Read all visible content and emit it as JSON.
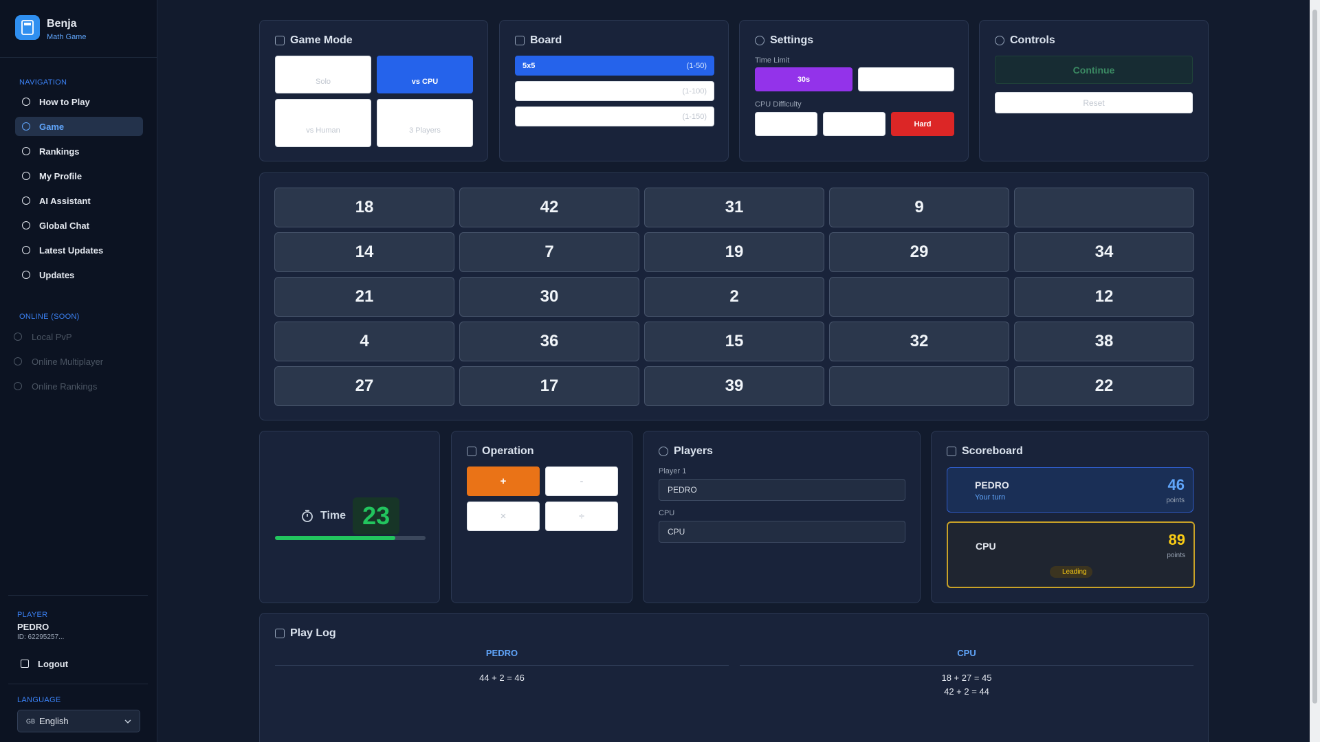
{
  "sidebar": {
    "app_name": "Benja",
    "app_subtitle": "Math Game",
    "nav_heading": "NAVIGATION",
    "nav_items": [
      "How to Play",
      "Game",
      "Rankings",
      "My Profile",
      "AI Assistant",
      "Global Chat",
      "Latest Updates",
      "Updates"
    ],
    "online_heading": "ONLINE (SOON)",
    "online_items": [
      "Local PvP",
      "Online Multiplayer",
      "Online Rankings"
    ],
    "player_heading": "PLAYER",
    "player_name": "PEDRO",
    "player_id": "ID: 62295257...",
    "logout": "Logout",
    "language_heading": "LANGUAGE",
    "language_flag": "GB",
    "language": "English"
  },
  "game_mode": {
    "title": "Game Mode",
    "options": [
      "Solo",
      "vs CPU",
      "vs Human",
      "3 Players"
    ]
  },
  "board": {
    "title": "Board",
    "options": [
      {
        "label": "5x5",
        "range": "(1-50)"
      },
      {
        "range": "(1-100)"
      },
      {
        "range": "(1-150)"
      }
    ]
  },
  "settings": {
    "title": "Settings",
    "time_limit_label": "Time Limit",
    "time_option": "30s",
    "cpu_difficulty_label": "CPU Difficulty",
    "difficulty_option": "Hard"
  },
  "controls": {
    "title": "Controls",
    "continue": "Continue",
    "reset": "Reset"
  },
  "grid": {
    "rows": [
      [
        18,
        42,
        31,
        9,
        null
      ],
      [
        14,
        7,
        19,
        29,
        34
      ],
      [
        21,
        30,
        2,
        null,
        12
      ],
      [
        4,
        36,
        15,
        32,
        38
      ],
      [
        27,
        17,
        39,
        null,
        22
      ]
    ]
  },
  "timer": {
    "label": "Time",
    "value": 23
  },
  "operation": {
    "title": "Operation",
    "options": [
      "+",
      "-",
      "×",
      "÷"
    ]
  },
  "players": {
    "title": "Players",
    "player1_label": "Player 1",
    "player1_value": "PEDRO",
    "cpu_label": "CPU",
    "cpu_value": "CPU"
  },
  "scoreboard": {
    "title": "Scoreboard",
    "entries": [
      {
        "name": "PEDRO",
        "note": "Your turn",
        "score": 46,
        "unit": "points"
      },
      {
        "name": "CPU",
        "score": 89,
        "unit": "points",
        "badge": "Leading"
      }
    ]
  },
  "play_log": {
    "title": "Play Log",
    "columns": [
      {
        "name": "PEDRO",
        "entries": [
          "44 + 2 = 46"
        ]
      },
      {
        "name": "CPU",
        "entries": [
          "18 + 27 = 45",
          "42 + 2 = 44"
        ]
      }
    ]
  }
}
